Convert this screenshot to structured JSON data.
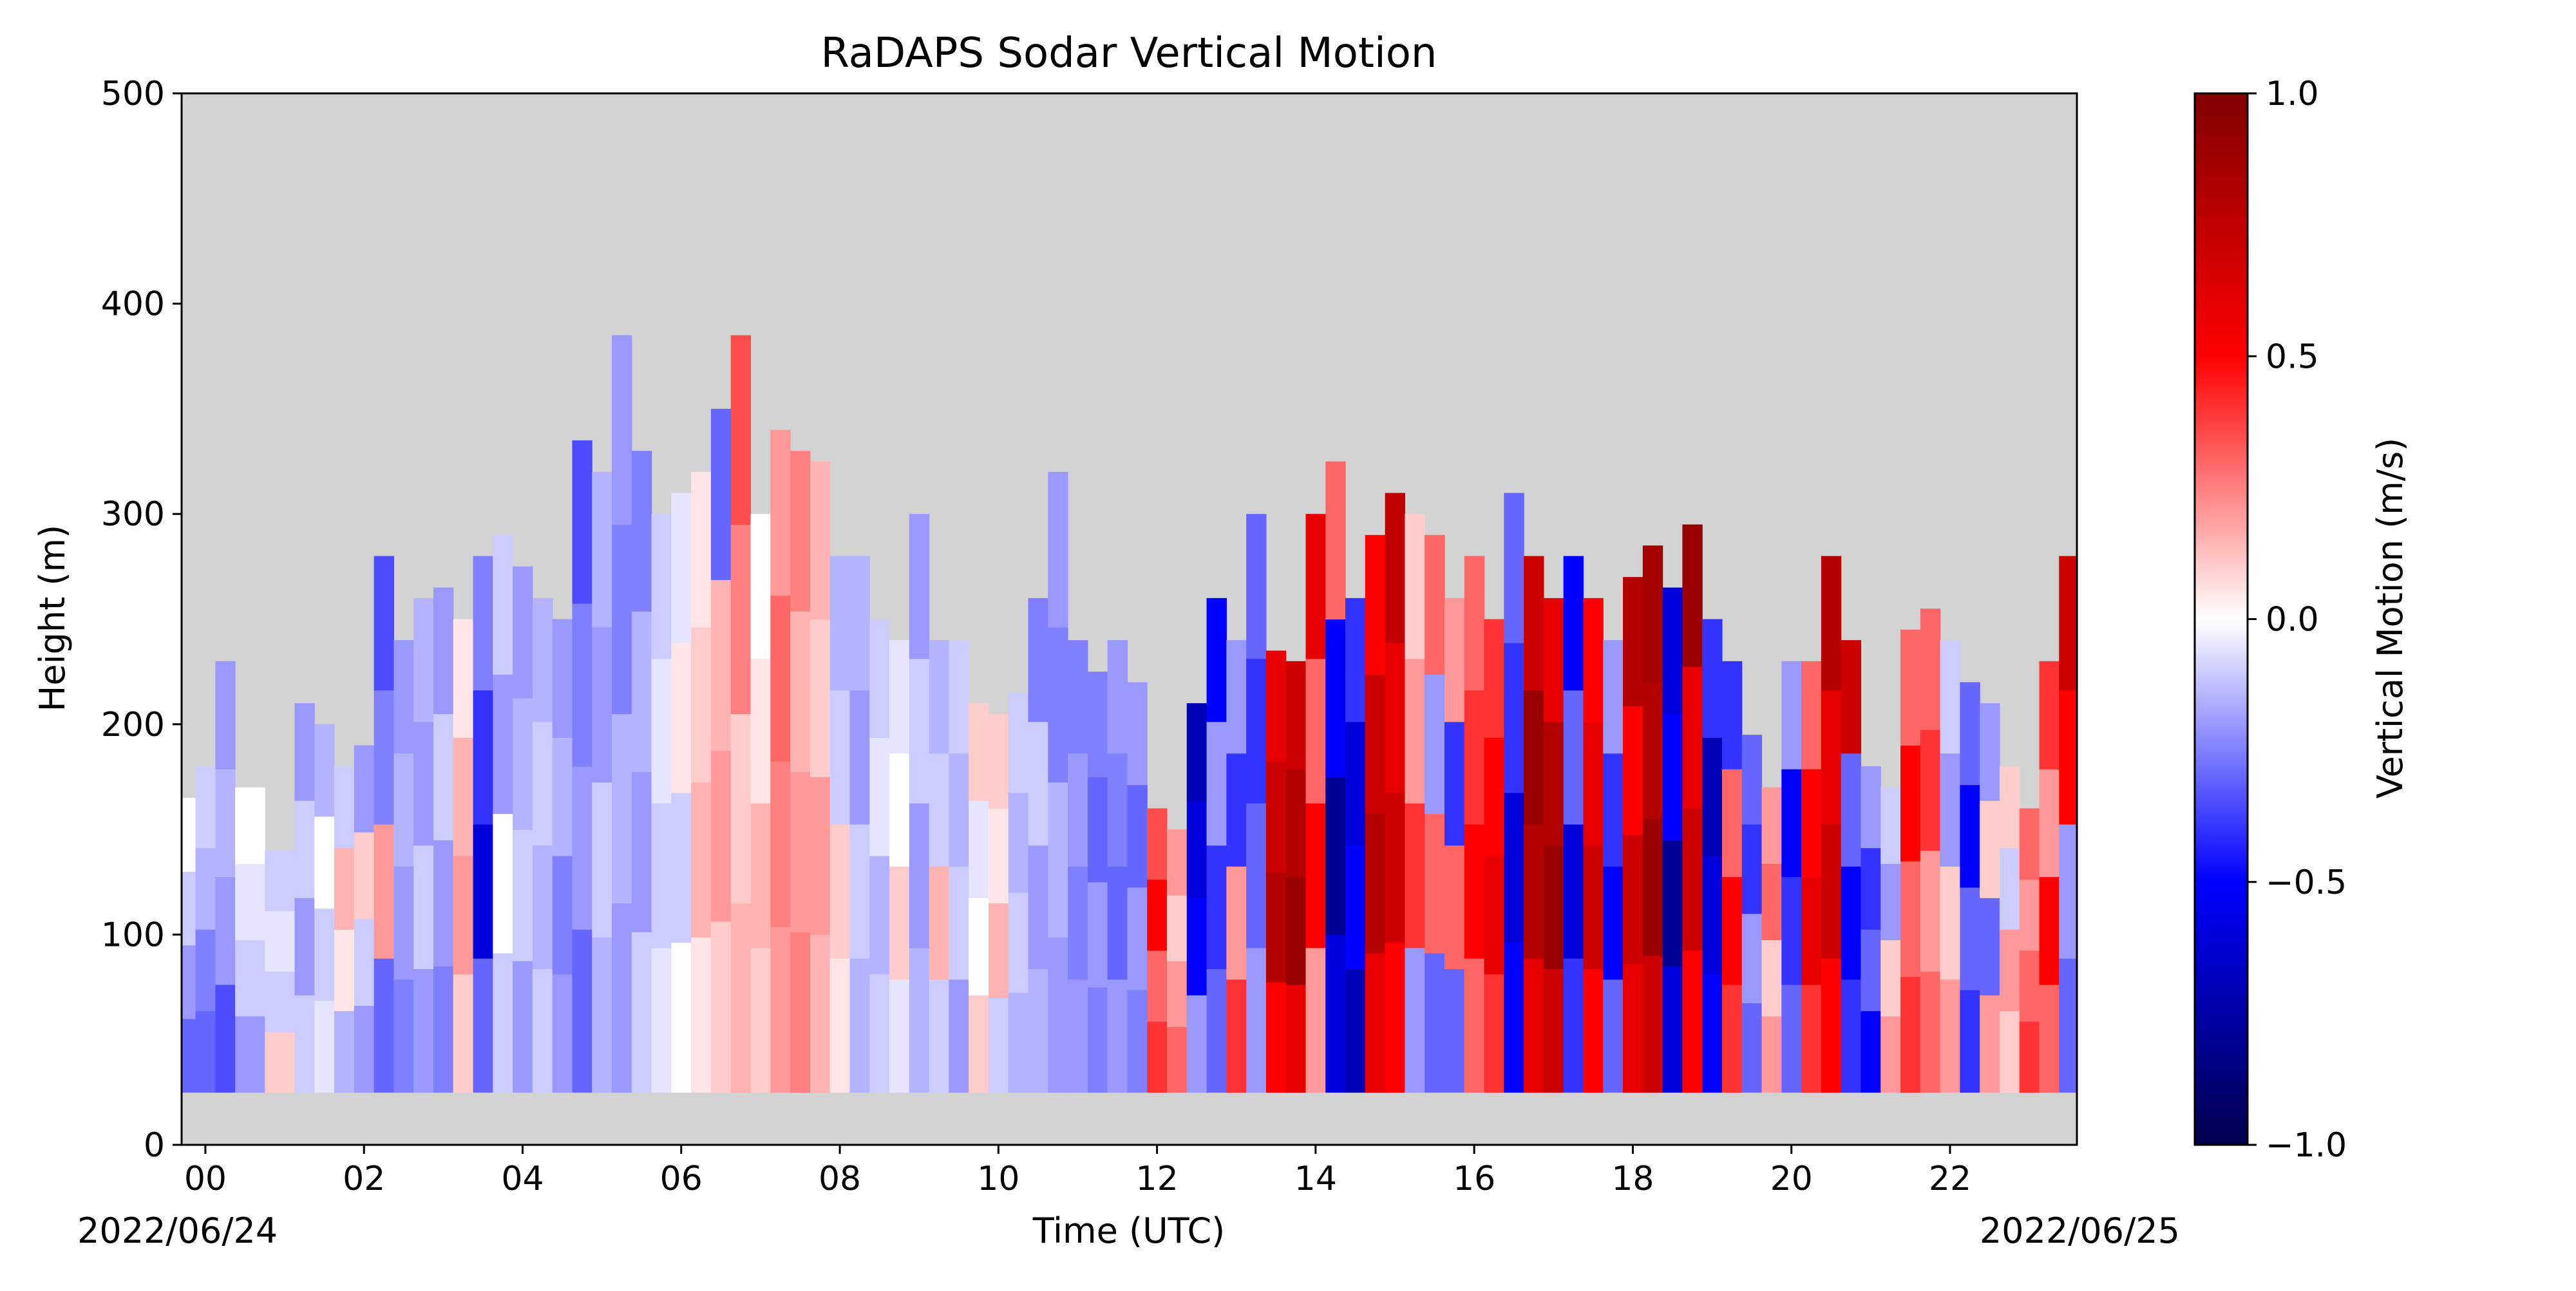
{
  "chart_data": {
    "type": "heatmap",
    "title": "RaDAPS Sodar Vertical Motion",
    "xlabel": "Time (UTC)",
    "ylabel": "Height (m)",
    "x_unit": "hour UTC",
    "xlim": [
      -0.3,
      23.6
    ],
    "ylim": [
      0,
      500
    ],
    "x_ticks": [
      0,
      2,
      4,
      6,
      8,
      10,
      12,
      14,
      16,
      18,
      20,
      22
    ],
    "x_tick_labels": [
      "00",
      "02",
      "04",
      "06",
      "08",
      "10",
      "12",
      "14",
      "16",
      "18",
      "20",
      "22"
    ],
    "y_ticks": [
      0,
      100,
      200,
      300,
      400,
      500
    ],
    "y_tick_labels": [
      "0",
      "100",
      "200",
      "300",
      "400",
      "500"
    ],
    "date_start": "2022/06/24",
    "date_end": "2022/06/25",
    "background_color": "#d3d3d3",
    "missing_data_color": "#d3d3d3",
    "min_height_m": 25,
    "grid": false,
    "colorbar": {
      "label": "Vertical Motion (m/s)",
      "cmap": "seismic",
      "vmin": -1.0,
      "vmax": 1.0,
      "ticks": [
        -1.0,
        -0.5,
        0.0,
        0.5,
        1.0
      ],
      "tick_labels": [
        "−1.0",
        "−0.5",
        "0.0",
        "0.5",
        "1.0"
      ]
    },
    "columns": [
      {
        "t": -0.25,
        "top": 165,
        "w": [
          -0.3,
          -0.2,
          -0.1,
          0.0
        ]
      },
      {
        "t": 0.0,
        "top": 180,
        "w": [
          -0.3,
          -0.25,
          -0.15,
          -0.1
        ]
      },
      {
        "t": 0.25,
        "top": 230,
        "w": [
          -0.35,
          -0.2,
          -0.15,
          -0.2
        ]
      },
      {
        "t": 0.5,
        "top": 170,
        "w": [
          -0.2,
          -0.1,
          -0.05,
          0.0
        ]
      },
      {
        "t": 1.0,
        "top": 140,
        "w": [
          0.1,
          -0.1,
          -0.05,
          -0.1
        ]
      },
      {
        "t": 1.25,
        "top": 210,
        "w": [
          -0.1,
          -0.2,
          -0.1,
          -0.2
        ]
      },
      {
        "t": 1.5,
        "top": 200,
        "w": [
          -0.05,
          -0.1,
          0.0,
          -0.15
        ]
      },
      {
        "t": 1.75,
        "top": 180,
        "w": [
          -0.15,
          0.05,
          0.15,
          -0.1
        ]
      },
      {
        "t": 2.0,
        "top": 190,
        "w": [
          -0.2,
          -0.1,
          0.1,
          -0.2
        ]
      },
      {
        "t": 2.25,
        "top": 280,
        "w": [
          -0.3,
          0.2,
          -0.25,
          -0.35
        ]
      },
      {
        "t": 2.5,
        "top": 240,
        "w": [
          -0.25,
          -0.2,
          -0.15,
          -0.2
        ]
      },
      {
        "t": 2.75,
        "top": 260,
        "w": [
          -0.2,
          -0.1,
          -0.2,
          -0.15
        ]
      },
      {
        "t": 3.0,
        "top": 265,
        "w": [
          -0.25,
          -0.2,
          -0.1,
          -0.2
        ]
      },
      {
        "t": 3.25,
        "top": 250,
        "w": [
          0.1,
          0.2,
          0.15,
          0.05
        ]
      },
      {
        "t": 3.5,
        "top": 280,
        "w": [
          -0.3,
          -0.6,
          -0.4,
          -0.25
        ]
      },
      {
        "t": 3.75,
        "top": 290,
        "w": [
          -0.1,
          0.0,
          -0.2,
          -0.1
        ]
      },
      {
        "t": 4.0,
        "top": 275,
        "w": [
          -0.2,
          -0.1,
          -0.15,
          -0.2
        ]
      },
      {
        "t": 4.25,
        "top": 260,
        "w": [
          -0.1,
          -0.15,
          -0.1,
          -0.15
        ]
      },
      {
        "t": 4.5,
        "top": 250,
        "w": [
          -0.2,
          -0.25,
          -0.15,
          -0.2
        ]
      },
      {
        "t": 4.75,
        "top": 335,
        "w": [
          -0.3,
          -0.2,
          -0.25,
          -0.35
        ]
      },
      {
        "t": 5.0,
        "top": 320,
        "w": [
          -0.15,
          -0.1,
          -0.2,
          -0.15
        ]
      },
      {
        "t": 5.25,
        "top": 385,
        "w": [
          -0.2,
          -0.15,
          -0.25,
          -0.2
        ]
      },
      {
        "t": 5.5,
        "top": 330,
        "w": [
          -0.1,
          -0.2,
          -0.15,
          -0.25
        ]
      },
      {
        "t": 5.75,
        "top": 300,
        "w": [
          -0.05,
          -0.1,
          -0.05,
          -0.1
        ]
      },
      {
        "t": 6.0,
        "top": 310,
        "w": [
          0.0,
          -0.1,
          0.05,
          -0.05
        ]
      },
      {
        "t": 6.25,
        "top": 320,
        "w": [
          0.05,
          0.15,
          0.1,
          0.05
        ]
      },
      {
        "t": 6.5,
        "top": 350,
        "w": [
          0.1,
          0.2,
          0.15,
          -0.3
        ]
      },
      {
        "t": 6.75,
        "top": 385,
        "w": [
          0.15,
          0.1,
          0.25,
          0.35
        ]
      },
      {
        "t": 7.0,
        "top": 300,
        "w": [
          0.1,
          0.15,
          0.05,
          0.0
        ]
      },
      {
        "t": 7.25,
        "top": 340,
        "w": [
          0.2,
          0.25,
          0.3,
          0.2
        ]
      },
      {
        "t": 7.5,
        "top": 330,
        "w": [
          0.25,
          0.2,
          0.15,
          0.25
        ]
      },
      {
        "t": 7.75,
        "top": 325,
        "w": [
          0.15,
          0.2,
          0.1,
          0.15
        ]
      },
      {
        "t": 8.0,
        "top": 280,
        "w": [
          0.05,
          0.1,
          -0.1,
          -0.15
        ]
      },
      {
        "t": 8.25,
        "top": 280,
        "w": [
          -0.15,
          -0.1,
          -0.2,
          -0.15
        ]
      },
      {
        "t": 8.5,
        "top": 250,
        "w": [
          -0.1,
          -0.15,
          -0.05,
          -0.1
        ]
      },
      {
        "t": 8.75,
        "top": 240,
        "w": [
          -0.05,
          0.1,
          0.0,
          -0.05
        ]
      },
      {
        "t": 9.0,
        "top": 300,
        "w": [
          -0.15,
          -0.2,
          -0.1,
          -0.2
        ]
      },
      {
        "t": 9.25,
        "top": 240,
        "w": [
          -0.1,
          0.15,
          -0.1,
          -0.15
        ]
      },
      {
        "t": 9.5,
        "top": 240,
        "w": [
          -0.2,
          -0.1,
          -0.15,
          -0.1
        ]
      },
      {
        "t": 9.75,
        "top": 210,
        "w": [
          0.1,
          0.0,
          -0.05,
          0.1
        ]
      },
      {
        "t": 10.0,
        "top": 205,
        "w": [
          -0.1,
          0.15,
          0.05,
          0.1
        ]
      },
      {
        "t": 10.25,
        "top": 215,
        "w": [
          -0.15,
          -0.1,
          -0.15,
          -0.1
        ]
      },
      {
        "t": 10.5,
        "top": 260,
        "w": [
          -0.15,
          -0.2,
          -0.1,
          -0.25
        ]
      },
      {
        "t": 10.75,
        "top": 320,
        "w": [
          -0.2,
          -0.15,
          -0.25,
          -0.2
        ]
      },
      {
        "t": 11.0,
        "top": 240,
        "w": [
          -0.2,
          -0.25,
          -0.2,
          -0.25
        ]
      },
      {
        "t": 11.25,
        "top": 225,
        "w": [
          -0.25,
          -0.2,
          -0.3,
          -0.25
        ]
      },
      {
        "t": 11.5,
        "top": 240,
        "w": [
          -0.2,
          -0.3,
          -0.25,
          -0.2
        ]
      },
      {
        "t": 11.75,
        "top": 220,
        "w": [
          -0.25,
          -0.2,
          -0.3,
          -0.2
        ]
      },
      {
        "t": 12.0,
        "top": 160,
        "w": [
          0.4,
          0.3,
          0.5,
          0.35
        ]
      },
      {
        "t": 12.25,
        "top": 150,
        "w": [
          0.3,
          0.2,
          0.1,
          0.2
        ]
      },
      {
        "t": 12.5,
        "top": 210,
        "w": [
          -0.2,
          -0.5,
          -0.6,
          -0.7
        ]
      },
      {
        "t": 12.75,
        "top": 260,
        "w": [
          -0.3,
          -0.4,
          -0.2,
          -0.5
        ]
      },
      {
        "t": 13.0,
        "top": 240,
        "w": [
          0.4,
          0.2,
          -0.4,
          -0.2
        ]
      },
      {
        "t": 13.25,
        "top": 300,
        "w": [
          -0.2,
          -0.3,
          -0.4,
          -0.3
        ]
      },
      {
        "t": 13.5,
        "top": 235,
        "w": [
          0.5,
          0.8,
          0.7,
          0.6
        ]
      },
      {
        "t": 13.75,
        "top": 230,
        "w": [
          0.6,
          0.9,
          0.8,
          0.7
        ]
      },
      {
        "t": 14.0,
        "top": 300,
        "w": [
          0.2,
          0.5,
          0.3,
          0.6
        ]
      },
      {
        "t": 14.25,
        "top": 325,
        "w": [
          -0.6,
          -0.8,
          -0.5,
          0.3
        ]
      },
      {
        "t": 14.5,
        "top": 260,
        "w": [
          -0.7,
          -0.5,
          -0.6,
          -0.4
        ]
      },
      {
        "t": 14.75,
        "top": 290,
        "w": [
          0.6,
          0.8,
          0.7,
          0.5
        ]
      },
      {
        "t": 15.0,
        "top": 310,
        "w": [
          0.5,
          0.7,
          0.6,
          0.75
        ]
      },
      {
        "t": 15.25,
        "top": 300,
        "w": [
          -0.2,
          0.4,
          0.2,
          0.1
        ]
      },
      {
        "t": 15.5,
        "top": 290,
        "w": [
          -0.3,
          0.3,
          -0.2,
          0.3
        ]
      },
      {
        "t": 15.75,
        "top": 260,
        "w": [
          -0.3,
          0.3,
          -0.4,
          0.2
        ]
      },
      {
        "t": 16.0,
        "top": 280,
        "w": [
          0.3,
          0.5,
          0.4,
          0.3
        ]
      },
      {
        "t": 16.25,
        "top": 250,
        "w": [
          0.4,
          0.6,
          0.5,
          0.4
        ]
      },
      {
        "t": 16.5,
        "top": 310,
        "w": [
          -0.5,
          -0.6,
          -0.4,
          -0.3
        ]
      },
      {
        "t": 16.75,
        "top": 280,
        "w": [
          0.6,
          0.8,
          0.9,
          0.7
        ]
      },
      {
        "t": 17.0,
        "top": 260,
        "w": [
          0.7,
          0.9,
          0.8,
          0.6
        ]
      },
      {
        "t": 17.25,
        "top": 280,
        "w": [
          -0.4,
          -0.6,
          -0.3,
          -0.5
        ]
      },
      {
        "t": 17.5,
        "top": 260,
        "w": [
          0.5,
          0.7,
          0.6,
          0.5
        ]
      },
      {
        "t": 17.75,
        "top": 240,
        "w": [
          -0.3,
          -0.5,
          -0.4,
          -0.2
        ]
      },
      {
        "t": 18.0,
        "top": 270,
        "w": [
          0.6,
          0.7,
          0.5,
          0.8
        ]
      },
      {
        "t": 18.25,
        "top": 285,
        "w": [
          0.7,
          0.9,
          0.8,
          0.85
        ]
      },
      {
        "t": 18.5,
        "top": 265,
        "w": [
          -0.6,
          -0.8,
          -0.5,
          -0.6
        ]
      },
      {
        "t": 18.75,
        "top": 295,
        "w": [
          0.5,
          0.7,
          0.6,
          0.9
        ]
      },
      {
        "t": 19.0,
        "top": 250,
        "w": [
          -0.5,
          -0.6,
          -0.7,
          -0.4
        ]
      },
      {
        "t": 19.25,
        "top": 230,
        "w": [
          0.4,
          0.5,
          0.3,
          -0.4
        ]
      },
      {
        "t": 19.5,
        "top": 195,
        "w": [
          -0.3,
          -0.2,
          -0.4,
          -0.3
        ]
      },
      {
        "t": 19.75,
        "top": 170,
        "w": [
          0.2,
          0.1,
          0.3,
          0.2
        ]
      },
      {
        "t": 20.0,
        "top": 230,
        "w": [
          -0.3,
          -0.4,
          -0.5,
          -0.2
        ]
      },
      {
        "t": 20.25,
        "top": 230,
        "w": [
          0.4,
          0.6,
          0.5,
          0.3
        ]
      },
      {
        "t": 20.5,
        "top": 280,
        "w": [
          0.5,
          0.7,
          0.6,
          0.8
        ]
      },
      {
        "t": 20.75,
        "top": 240,
        "w": [
          -0.4,
          -0.5,
          -0.3,
          0.7
        ]
      },
      {
        "t": 21.0,
        "top": 180,
        "w": [
          -0.5,
          -0.3,
          -0.4,
          -0.2
        ]
      },
      {
        "t": 21.25,
        "top": 170,
        "w": [
          0.2,
          0.1,
          -0.2,
          -0.1
        ]
      },
      {
        "t": 21.5,
        "top": 245,
        "w": [
          0.4,
          0.3,
          0.5,
          0.3
        ]
      },
      {
        "t": 21.75,
        "top": 255,
        "w": [
          0.3,
          0.2,
          0.4,
          0.3
        ]
      },
      {
        "t": 22.0,
        "top": 240,
        "w": [
          0.2,
          0.1,
          -0.2,
          -0.1
        ]
      },
      {
        "t": 22.25,
        "top": 220,
        "w": [
          -0.4,
          -0.3,
          -0.5,
          -0.3
        ]
      },
      {
        "t": 22.5,
        "top": 210,
        "w": [
          0.2,
          -0.3,
          0.1,
          -0.2
        ]
      },
      {
        "t": 22.75,
        "top": 180,
        "w": [
          0.1,
          0.2,
          -0.1,
          0.1
        ]
      },
      {
        "t": 23.0,
        "top": 160,
        "w": [
          0.4,
          0.3,
          0.2,
          0.3
        ]
      },
      {
        "t": 23.25,
        "top": 230,
        "w": [
          0.3,
          0.5,
          0.2,
          0.4
        ]
      },
      {
        "t": 23.5,
        "top": 280,
        "w": [
          -0.3,
          -0.2,
          0.5,
          0.7
        ]
      }
    ]
  }
}
